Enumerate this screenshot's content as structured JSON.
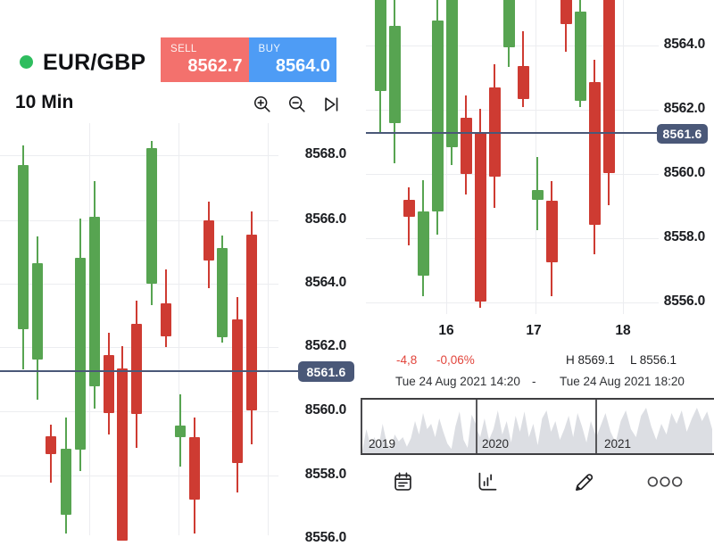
{
  "header": {
    "instrument": "EUR/GBP",
    "timeframe": "10 Min",
    "sell": {
      "label": "SELL",
      "price": "8562.7"
    },
    "buy": {
      "label": "BUY",
      "price": "8564.0"
    }
  },
  "colors": {
    "up": "#57A451",
    "down": "#CE3B32",
    "grid": "#ECEDF0",
    "price_line": "#4A5878",
    "badge_bg": "#4A5878",
    "sell_bg": "#F3716D",
    "buy_bg": "#4E9CF5",
    "status_dot": "#2EBD5E",
    "negative": "#E2453C",
    "scrubber_fill": "#DCDEE3"
  },
  "chart_data": {
    "left_chart": {
      "type": "candlestick",
      "units": "px",
      "body_width": 12,
      "price_label": "8561.6",
      "price_line_y": 415,
      "y_ticks": [
        {
          "label": "8568.0",
          "y": 174
        },
        {
          "label": "8566.0",
          "y": 247
        },
        {
          "label": "8564.0",
          "y": 318
        },
        {
          "label": "8562.0",
          "y": 389
        },
        {
          "label": "8560.0",
          "y": 461
        },
        {
          "label": "8558.0",
          "y": 533
        },
        {
          "label": "8556.0",
          "y": 604
        }
      ],
      "v_grid": [
        100,
        200,
        300
      ],
      "candles": [
        [
          26,
          185,
          369,
          163,
          414,
          "g"
        ],
        [
          42,
          295,
          403,
          265,
          448,
          "g"
        ],
        [
          57,
          489,
          509,
          476,
          541,
          "r"
        ],
        [
          74,
          503,
          577,
          468,
          598,
          "g"
        ],
        [
          90,
          289,
          504,
          245,
          528,
          "g"
        ],
        [
          106,
          243,
          433,
          203,
          458,
          "g"
        ],
        [
          122,
          398,
          463,
          373,
          487,
          "r"
        ],
        [
          137,
          413,
          606,
          388,
          606,
          "r"
        ],
        [
          153,
          363,
          464,
          337,
          502,
          "r"
        ],
        [
          170,
          166,
          318,
          158,
          342,
          "g"
        ],
        [
          186,
          340,
          377,
          302,
          389,
          "r"
        ],
        [
          202,
          477,
          490,
          442,
          523,
          "g"
        ],
        [
          218,
          490,
          560,
          468,
          598,
          "r"
        ],
        [
          234,
          247,
          292,
          226,
          323,
          "r"
        ],
        [
          249,
          278,
          378,
          264,
          384,
          "g"
        ],
        [
          266,
          358,
          519,
          333,
          552,
          "r"
        ],
        [
          282,
          263,
          460,
          237,
          498,
          "r"
        ]
      ]
    },
    "right_chart": {
      "type": "candlestick",
      "units": "px",
      "body_width": 13,
      "price_label": "8561.6",
      "price_line_y": 149,
      "y_ticks": [
        {
          "label": "8564.0",
          "y": 51
        },
        {
          "label": "8562.0",
          "y": 123
        },
        {
          "label": "8560.0",
          "y": 195
        },
        {
          "label": "8558.0",
          "y": 267
        },
        {
          "label": "8556.0",
          "y": 339
        }
      ],
      "v_grid": [
        500,
        600,
        698
      ],
      "x_ticks": [
        {
          "label": "16",
          "x": 500
        },
        {
          "label": "17",
          "x": 598
        },
        {
          "label": "18",
          "x": 698
        }
      ],
      "candles": [
        [
          426,
          -20,
          102,
          -20,
          149,
          "g"
        ],
        [
          442,
          29,
          138,
          -5,
          183,
          "g"
        ],
        [
          458,
          224,
          243,
          210,
          275,
          "r"
        ],
        [
          474,
          237,
          309,
          202,
          332,
          "g"
        ],
        [
          490,
          23,
          237,
          -5,
          263,
          "g"
        ],
        [
          506,
          -20,
          165,
          -20,
          185,
          "g"
        ],
        [
          522,
          132,
          195,
          107,
          218,
          "r"
        ],
        [
          538,
          148,
          338,
          122,
          345,
          "r"
        ],
        [
          554,
          98,
          198,
          72,
          233,
          "r"
        ],
        [
          570,
          -20,
          53,
          -20,
          75,
          "g"
        ],
        [
          586,
          74,
          111,
          35,
          120,
          "r"
        ],
        [
          602,
          213,
          224,
          176,
          258,
          "g"
        ],
        [
          618,
          225,
          294,
          203,
          332,
          "r"
        ],
        [
          634,
          -20,
          27,
          -20,
          58,
          "r"
        ],
        [
          650,
          13,
          113,
          -5,
          120,
          "g"
        ],
        [
          666,
          92,
          252,
          67,
          285,
          "r"
        ],
        [
          682,
          -20,
          194,
          -20,
          230,
          "r"
        ]
      ]
    }
  },
  "stats": {
    "change": "-4,8",
    "change_pct": "-0,06%",
    "high": "H 8569.1",
    "low": "L 8556.1"
  },
  "date_range": {
    "from": "Tue 24 Aug 2021 14:20",
    "separator": "-",
    "to": "Tue 24 Aug 2021 18:20"
  },
  "scrubber": {
    "segments": [
      {
        "label": "2019",
        "heights": [
          0.05,
          0.45,
          0.15,
          0.3,
          0.1,
          0.55,
          0.2,
          0.08,
          0.35,
          0.22,
          0.3,
          0.12,
          0.28,
          0.6,
          0.35,
          0.75,
          0.45,
          0.55,
          0.3,
          0.65,
          0.4,
          0.18,
          0.08,
          0.5,
          0.78,
          0.25,
          0.1,
          0.72,
          0.55
        ]
      },
      {
        "label": "2020",
        "heights": [
          0.5,
          0.3,
          0.65,
          0.25,
          0.45,
          0.8,
          0.35,
          0.6,
          0.2,
          0.7,
          0.4,
          0.78,
          0.3,
          0.55,
          0.15,
          0.65,
          0.8,
          0.4,
          0.6,
          0.25,
          0.45,
          0.7,
          0.3,
          0.75,
          0.5,
          0.2,
          0.6,
          0.35
        ]
      },
      {
        "label": "2021",
        "heights": [
          0.25,
          0.5,
          0.75,
          0.4,
          0.2,
          0.6,
          0.8,
          0.45,
          0.3,
          0.7,
          0.85,
          0.5,
          0.25,
          0.55,
          0.35,
          0.75,
          0.55,
          0.8,
          0.4,
          0.65,
          0.85,
          0.6,
          0.78,
          0.45
        ]
      }
    ]
  },
  "toolbar": {
    "items": [
      "calendar",
      "bar-chart",
      "pencil",
      "more"
    ]
  }
}
